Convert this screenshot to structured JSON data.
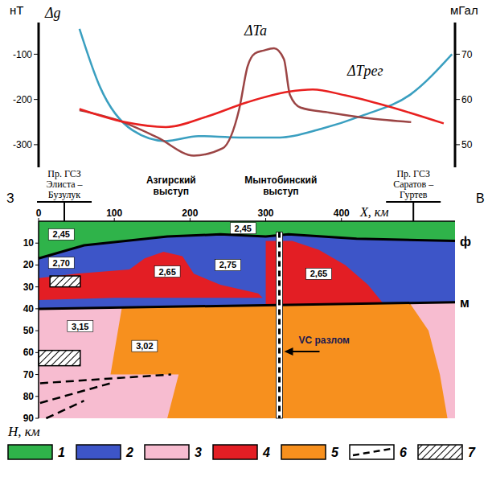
{
  "chart_data": {
    "type": "line",
    "xlim": [
      0,
      550
    ],
    "ylim": [
      -350,
      -30
    ],
    "yticks": [
      -300,
      -200,
      -100
    ],
    "y2lim": [
      45,
      77
    ],
    "y2ticks": [
      50,
      60,
      70
    ],
    "y_label": "нТ",
    "y2_label": "мГал",
    "tick_labels": "y",
    "series": [
      {
        "name": "Δg",
        "color": "#3a9fc0",
        "axis": "y2",
        "x": [
          54,
          81,
          124,
          168,
          211,
          265,
          319,
          373,
          427,
          492,
          546
        ],
        "values": [
          75.6,
          62.8,
          53.2,
          50.8,
          51.9,
          51.6,
          51.6,
          53.5,
          56.4,
          61.2,
          70
        ]
      },
      {
        "name": "ΔTa",
        "color": "#9b4444",
        "x": [
          54,
          103,
          157,
          205,
          243,
          265,
          276,
          286,
          297,
          311,
          324,
          332,
          346,
          384,
          438,
          492
        ],
        "values": [
          -224,
          -245,
          -284,
          -324,
          -308,
          -221,
          -127,
          -98,
          -92,
          -87,
          -111,
          -190,
          -218,
          -229,
          -242,
          -250
        ]
      },
      {
        "name": "ΔTрег",
        "color": "#e8201f",
        "x": [
          54,
          114,
          168,
          222,
          276,
          330,
          362,
          405,
          459,
          535
        ],
        "values": [
          -221,
          -250,
          -261,
          -238,
          -206,
          -183,
          -178,
          -191,
          -214,
          -253
        ]
      }
    ]
  },
  "section": {
    "x_label": "X, км",
    "xlim": [
      0,
      550
    ],
    "xticks": [
      0,
      100,
      200,
      300,
      400
    ],
    "y_label": "H, км",
    "ylim": [
      0,
      90
    ],
    "yticks": [
      10,
      20,
      30,
      40,
      50,
      60,
      70,
      80,
      90
    ],
    "west": "З",
    "east": "В",
    "profiles": [
      {
        "label": "Пр. ГСЗ Элиста – Бузулук",
        "x": 34
      },
      {
        "label": "Пр. ГСЗ Саратов – Гуртев",
        "x": 495
      }
    ],
    "features": [
      {
        "label": "Азгирский выступ",
        "x": 175
      },
      {
        "label": "Мынтобинский выступ",
        "x": 320
      }
    ],
    "bodies": [
      {
        "unit": "1",
        "points": [
          [
            0,
            0
          ],
          [
            550,
            0
          ],
          [
            550,
            9
          ],
          [
            420,
            8
          ],
          [
            330,
            6
          ],
          [
            300,
            7
          ],
          [
            240,
            6
          ],
          [
            170,
            7
          ],
          [
            60,
            11
          ],
          [
            0,
            17
          ]
        ]
      },
      {
        "unit": "2",
        "points": [
          [
            0,
            17
          ],
          [
            60,
            11
          ],
          [
            170,
            7
          ],
          [
            240,
            6
          ],
          [
            300,
            7
          ],
          [
            330,
            6
          ],
          [
            420,
            8
          ],
          [
            550,
            9
          ],
          [
            550,
            37
          ],
          [
            0,
            40
          ]
        ]
      },
      {
        "unit": "4",
        "points": [
          [
            0,
            26
          ],
          [
            50,
            24
          ],
          [
            120,
            22
          ],
          [
            140,
            17
          ],
          [
            165,
            14
          ],
          [
            190,
            16
          ],
          [
            205,
            24
          ],
          [
            240,
            29
          ],
          [
            290,
            33
          ],
          [
            296,
            35
          ],
          [
            200,
            35
          ],
          [
            100,
            35
          ],
          [
            0,
            36
          ]
        ]
      },
      {
        "unit": "4",
        "points": [
          [
            300,
            9
          ],
          [
            335,
            9
          ],
          [
            370,
            13
          ],
          [
            405,
            20
          ],
          [
            435,
            29
          ],
          [
            455,
            37.5
          ],
          [
            300,
            38.4
          ]
        ]
      },
      {
        "unit": "3",
        "points": [
          [
            0,
            40
          ],
          [
            550,
            37
          ],
          [
            550,
            90
          ],
          [
            0,
            90
          ]
        ]
      },
      {
        "unit": "5",
        "points": [
          [
            110,
            39.4
          ],
          [
            490,
            37.3
          ],
          [
            515,
            50
          ],
          [
            530,
            70
          ],
          [
            540,
            90
          ],
          [
            170,
            90
          ],
          [
            185,
            70
          ],
          [
            95,
            70
          ]
        ]
      }
    ],
    "lines": [
      {
        "label": "ф",
        "points": [
          [
            0,
            17
          ],
          [
            60,
            11
          ],
          [
            170,
            7
          ],
          [
            240,
            6
          ],
          [
            300,
            7
          ],
          [
            330,
            6
          ],
          [
            420,
            8
          ],
          [
            550,
            9
          ]
        ]
      },
      {
        "label": "м",
        "points": [
          [
            0,
            40
          ],
          [
            550,
            37
          ]
        ]
      }
    ],
    "fault": {
      "label": "VC разлом",
      "x": 318,
      "h": [
        5,
        90
      ],
      "arrow_h": 58
    },
    "dashed": [
      [
        [
          2,
          74
        ],
        [
          175,
          70
        ]
      ],
      [
        [
          2,
          83
        ],
        [
          95,
          74
        ]
      ],
      [
        [
          10,
          90
        ],
        [
          60,
          82
        ]
      ]
    ],
    "hatched": [
      [
        15,
        25,
        55,
        30
      ],
      [
        0,
        59,
        55,
        66
      ]
    ],
    "densities": [
      {
        "text": "2,45",
        "x": 30,
        "h": 6
      },
      {
        "text": "2,70",
        "x": 30,
        "h": 19
      },
      {
        "text": "2,65",
        "x": 170,
        "h": 23
      },
      {
        "text": "2,45",
        "x": 270,
        "h": 3.2
      },
      {
        "text": "2,75",
        "x": 250,
        "h": 20
      },
      {
        "text": "2,65",
        "x": 370,
        "h": 24
      },
      {
        "text": "3,15",
        "x": 55,
        "h": 48
      },
      {
        "text": "3,02",
        "x": 140,
        "h": 57
      }
    ],
    "legend": [
      {
        "label": "1",
        "color": "#2fb34a"
      },
      {
        "label": "2",
        "color": "#3d55c8"
      },
      {
        "label": "3",
        "color": "#f7bcd0"
      },
      {
        "label": "4",
        "color": "#e31e24"
      },
      {
        "label": "5",
        "color": "#f7901e"
      },
      {
        "label": "6",
        "line_style": "dashed"
      },
      {
        "label": "7",
        "line_style": "hatched"
      }
    ]
  }
}
